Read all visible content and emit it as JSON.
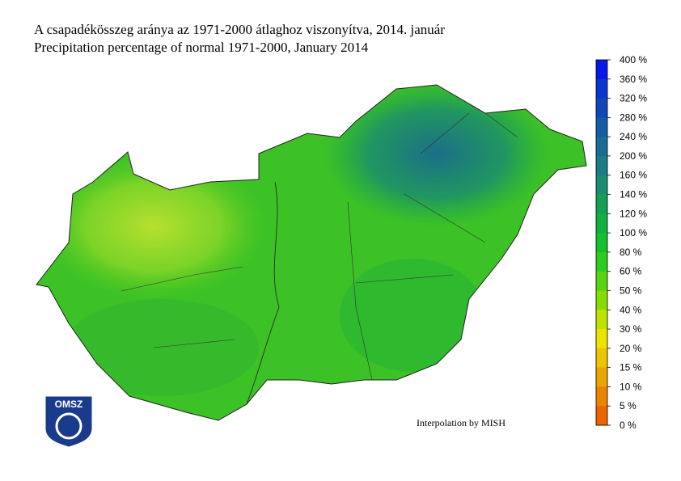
{
  "header": {
    "title_hu": "A csapadékösszeg aránya az 1971-2000 átlaghoz viszonyítva, 2014. január",
    "title_en": "Precipitation percentage of normal 1971-2000, January 2014"
  },
  "legend": {
    "labels": [
      "400 %",
      "360 %",
      "320 %",
      "280 %",
      "240 %",
      "200 %",
      "160 %",
      "140 %",
      "120 %",
      "100 %",
      "80 %",
      "60 %",
      "50 %",
      "40 %",
      "30 %",
      "20 %",
      "15 %",
      "10 %",
      "5 %",
      "0 %"
    ],
    "colors": [
      "#0818e8",
      "#0a34d0",
      "#1048b8",
      "#155ca6",
      "#186c96",
      "#1a7c84",
      "#1a8c70",
      "#12a054",
      "#10b040",
      "#12c030",
      "#2ccc1e",
      "#58d412",
      "#88dc06",
      "#bce400",
      "#ece400",
      "#ecc400",
      "#eca400",
      "#ec8400",
      "#ec6400"
    ]
  },
  "note": "Interpolation by MISH",
  "logo": {
    "text": "OMSZ"
  }
}
